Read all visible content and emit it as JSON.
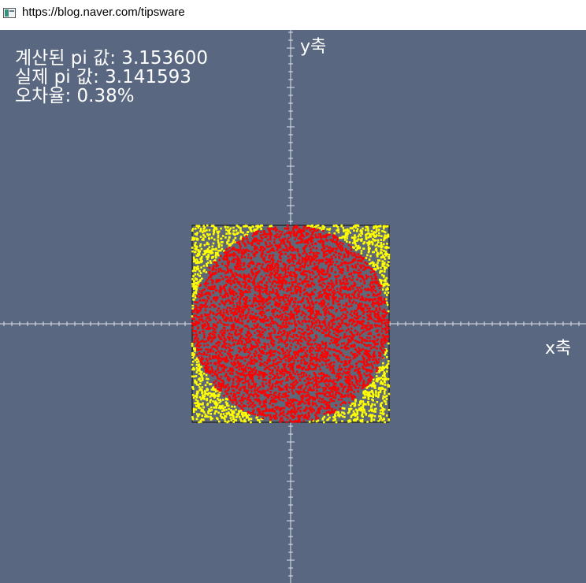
{
  "window": {
    "title": "https://blog.naver.com/tipsware",
    "icon": "app-window-icon"
  },
  "stats": {
    "calculated": "계산된 pi 값: 3.153600",
    "actual": "실제 pi 값: 3.141593",
    "error": "오차율: 0.38%"
  },
  "axes": {
    "x_label": "x축",
    "y_label": "y축"
  },
  "colors": {
    "background": "#596780",
    "inside_points": "#ff0000",
    "outside_points": "#ffff00",
    "axis": "#dfe3ea"
  },
  "simulation": {
    "estimated_pi": 3.1536,
    "actual_pi": 3.141593,
    "error_percent": 0.38
  }
}
